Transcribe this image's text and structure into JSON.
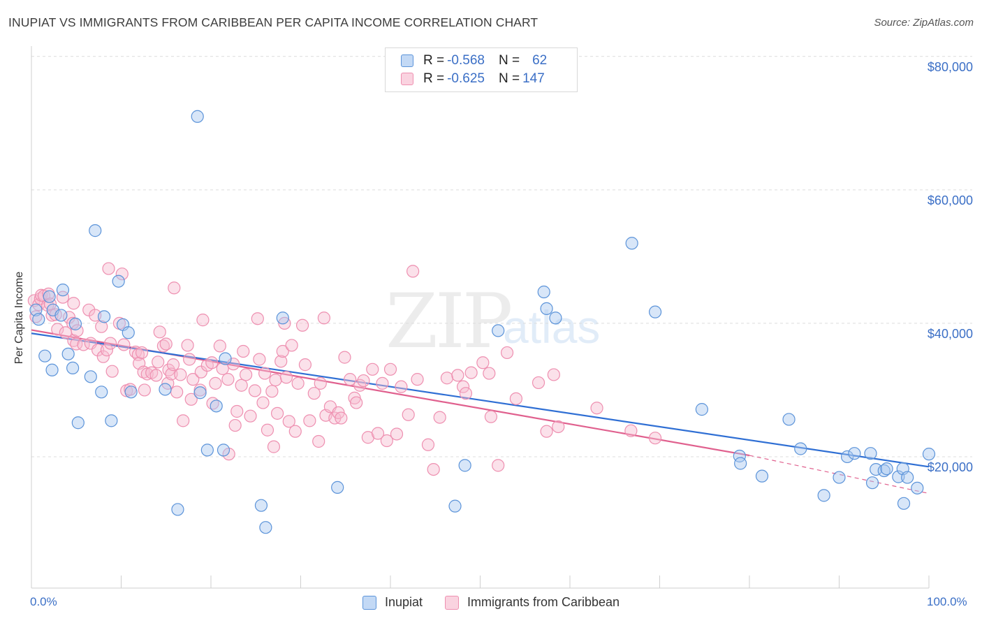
{
  "title": "INUPIAT VS IMMIGRANTS FROM CARIBBEAN PER CAPITA INCOME CORRELATION CHART",
  "source": "Source: ZipAtlas.com",
  "watermark": {
    "zip": "ZIP",
    "atlas": "atlas"
  },
  "stats": [
    {
      "r_label": "R = ",
      "r_value": "-0.568",
      "n_label": "N = ",
      "n_value": "62",
      "color": "#a9c8f0"
    },
    {
      "r_label": "R = ",
      "r_value": "-0.625",
      "n_label": "N = ",
      "n_value": "147",
      "color": "#f6bcd0"
    }
  ],
  "legend": [
    {
      "label": "Inupiat",
      "color": "#a9c8f0"
    },
    {
      "label": "Immigrants from Caribbean",
      "color": "#f6bcd0"
    }
  ],
  "chart_data": {
    "type": "scatter",
    "title": "INUPIAT VS IMMIGRANTS FROM CARIBBEAN PER CAPITA INCOME CORRELATION CHART",
    "xlabel": "",
    "ylabel": "Per Capita Income",
    "xlim": [
      0,
      100
    ],
    "ylim": [
      0,
      80000
    ],
    "x_tick_labels": [
      "0.0%",
      "100.0%"
    ],
    "y_ticks": [
      20000,
      40000,
      60000,
      80000
    ],
    "y_tick_labels": [
      "$20,000",
      "$40,000",
      "$60,000",
      "$80,000"
    ],
    "grid": "horizontal dashed",
    "colors": {
      "inupiat": "#5b93d9",
      "caribbean": "#ee8fb0",
      "inupiat_line": "#2f6fd4",
      "caribbean_line": "#e0608e"
    },
    "series": [
      {
        "name": "Inupiat",
        "trend": {
          "x": [
            0,
            100
          ],
          "y": [
            38500,
            18500
          ]
        },
        "points": [
          [
            0.5,
            42000
          ],
          [
            0.8,
            40600
          ],
          [
            1.5,
            35100
          ],
          [
            2.0,
            44000
          ],
          [
            2.3,
            33000
          ],
          [
            2.4,
            42000
          ],
          [
            3.3,
            41200
          ],
          [
            3.5,
            45000
          ],
          [
            4.1,
            35400
          ],
          [
            4.6,
            33300
          ],
          [
            4.9,
            39900
          ],
          [
            5.2,
            25100
          ],
          [
            6.6,
            32000
          ],
          [
            7.1,
            53900
          ],
          [
            7.8,
            29700
          ],
          [
            8.1,
            41000
          ],
          [
            8.9,
            25400
          ],
          [
            9.7,
            46300
          ],
          [
            10.2,
            39800
          ],
          [
            10.8,
            38600
          ],
          [
            11.1,
            29700
          ],
          [
            14.9,
            30100
          ],
          [
            16.3,
            12100
          ],
          [
            18.5,
            71000
          ],
          [
            18.8,
            29600
          ],
          [
            19.6,
            21000
          ],
          [
            20.6,
            27600
          ],
          [
            21.4,
            21000
          ],
          [
            21.6,
            34700
          ],
          [
            25.6,
            12700
          ],
          [
            26.1,
            9400
          ],
          [
            28.0,
            40800
          ],
          [
            34.1,
            15400
          ],
          [
            47.2,
            12600
          ],
          [
            48.3,
            18700
          ],
          [
            52.0,
            38900
          ],
          [
            57.1,
            44700
          ],
          [
            57.4,
            42200
          ],
          [
            58.4,
            40800
          ],
          [
            66.9,
            52000
          ],
          [
            69.5,
            41700
          ],
          [
            74.7,
            27100
          ],
          [
            78.9,
            20100
          ],
          [
            79.0,
            19000
          ],
          [
            81.4,
            17100
          ],
          [
            84.4,
            25600
          ],
          [
            85.7,
            21200
          ],
          [
            88.3,
            14200
          ],
          [
            90.0,
            16900
          ],
          [
            90.9,
            20000
          ],
          [
            91.7,
            20500
          ],
          [
            93.5,
            20500
          ],
          [
            93.7,
            16100
          ],
          [
            94.1,
            18100
          ],
          [
            95.0,
            17900
          ],
          [
            95.3,
            18200
          ],
          [
            96.6,
            17000
          ],
          [
            97.1,
            18200
          ],
          [
            97.2,
            13000
          ],
          [
            97.6,
            16900
          ],
          [
            98.7,
            15300
          ],
          [
            100.0,
            20400
          ]
        ]
      },
      {
        "name": "Immigrants from Caribbean",
        "trend": {
          "x": [
            0,
            80
          ],
          "y": [
            39000,
            20200
          ]
        },
        "trend_extension": {
          "x": [
            80,
            100
          ],
          "y": [
            20200,
            14500
          ]
        },
        "points": [
          [
            0.3,
            43400
          ],
          [
            0.5,
            41000
          ],
          [
            0.8,
            42800
          ],
          [
            1.0,
            43700
          ],
          [
            1.1,
            44200
          ],
          [
            1.4,
            44100
          ],
          [
            1.8,
            42700
          ],
          [
            1.9,
            44400
          ],
          [
            2.1,
            42900
          ],
          [
            2.3,
            41200
          ],
          [
            2.7,
            41300
          ],
          [
            2.9,
            39100
          ],
          [
            3.5,
            43900
          ],
          [
            3.8,
            38600
          ],
          [
            4.2,
            40900
          ],
          [
            4.6,
            40000
          ],
          [
            4.7,
            43000
          ],
          [
            4.7,
            37400
          ],
          [
            5.0,
            36900
          ],
          [
            5.1,
            38900
          ],
          [
            5.8,
            36800
          ],
          [
            6.4,
            42000
          ],
          [
            6.6,
            37000
          ],
          [
            7.1,
            41200
          ],
          [
            7.4,
            36000
          ],
          [
            7.8,
            39500
          ],
          [
            8.0,
            35000
          ],
          [
            8.4,
            36000
          ],
          [
            8.6,
            48200
          ],
          [
            8.8,
            37000
          ],
          [
            9.0,
            32800
          ],
          [
            9.8,
            40000
          ],
          [
            10.1,
            47400
          ],
          [
            10.3,
            36800
          ],
          [
            10.6,
            29900
          ],
          [
            11.0,
            30100
          ],
          [
            11.6,
            35700
          ],
          [
            11.9,
            35300
          ],
          [
            12.0,
            34000
          ],
          [
            12.3,
            35600
          ],
          [
            12.5,
            32700
          ],
          [
            12.6,
            30000
          ],
          [
            12.9,
            32400
          ],
          [
            13.4,
            32600
          ],
          [
            13.9,
            32200
          ],
          [
            14.1,
            34200
          ],
          [
            14.3,
            38700
          ],
          [
            14.7,
            36600
          ],
          [
            15.0,
            36900
          ],
          [
            15.2,
            31000
          ],
          [
            15.3,
            33000
          ],
          [
            15.6,
            32400
          ],
          [
            15.8,
            33800
          ],
          [
            15.9,
            45300
          ],
          [
            16.2,
            29700
          ],
          [
            16.6,
            32300
          ],
          [
            16.9,
            25400
          ],
          [
            17.4,
            36700
          ],
          [
            17.6,
            34600
          ],
          [
            17.8,
            28600
          ],
          [
            18.0,
            31600
          ],
          [
            18.8,
            30000
          ],
          [
            18.9,
            32700
          ],
          [
            19.1,
            40500
          ],
          [
            19.6,
            33700
          ],
          [
            20.1,
            34100
          ],
          [
            20.2,
            28000
          ],
          [
            20.5,
            31000
          ],
          [
            21.0,
            36600
          ],
          [
            21.3,
            33200
          ],
          [
            21.9,
            31600
          ],
          [
            22.0,
            20400
          ],
          [
            22.5,
            33900
          ],
          [
            22.7,
            24700
          ],
          [
            22.9,
            26800
          ],
          [
            23.4,
            30700
          ],
          [
            23.6,
            35800
          ],
          [
            23.9,
            32300
          ],
          [
            24.4,
            26100
          ],
          [
            24.9,
            29900
          ],
          [
            25.2,
            40700
          ],
          [
            25.4,
            34600
          ],
          [
            25.8,
            28100
          ],
          [
            26.0,
            32500
          ],
          [
            26.3,
            24000
          ],
          [
            26.8,
            29800
          ],
          [
            27.0,
            21500
          ],
          [
            27.2,
            31500
          ],
          [
            27.4,
            26500
          ],
          [
            27.8,
            34300
          ],
          [
            28.0,
            35800
          ],
          [
            28.2,
            40000
          ],
          [
            28.4,
            31900
          ],
          [
            28.7,
            25300
          ],
          [
            29.0,
            36700
          ],
          [
            29.4,
            23800
          ],
          [
            29.7,
            31000
          ],
          [
            30.2,
            39700
          ],
          [
            30.5,
            33800
          ],
          [
            31.0,
            25400
          ],
          [
            31.5,
            29500
          ],
          [
            32.0,
            22300
          ],
          [
            32.2,
            31000
          ],
          [
            32.6,
            40800
          ],
          [
            32.8,
            26200
          ],
          [
            33.3,
            27500
          ],
          [
            33.8,
            25800
          ],
          [
            34.2,
            26600
          ],
          [
            34.5,
            25800
          ],
          [
            34.9,
            34900
          ],
          [
            35.5,
            31600
          ],
          [
            36.0,
            28800
          ],
          [
            36.2,
            28100
          ],
          [
            36.6,
            30700
          ],
          [
            37.0,
            31400
          ],
          [
            37.5,
            22900
          ],
          [
            38.0,
            33100
          ],
          [
            38.6,
            23500
          ],
          [
            39.1,
            31000
          ],
          [
            39.6,
            22400
          ],
          [
            40.0,
            33100
          ],
          [
            40.7,
            23400
          ],
          [
            41.2,
            30500
          ],
          [
            42.0,
            26300
          ],
          [
            42.5,
            47800
          ],
          [
            43.0,
            31600
          ],
          [
            44.2,
            21800
          ],
          [
            44.8,
            18100
          ],
          [
            45.5,
            25900
          ],
          [
            46.3,
            31800
          ],
          [
            47.5,
            32200
          ],
          [
            48.1,
            30500
          ],
          [
            48.4,
            29500
          ],
          [
            49.0,
            32600
          ],
          [
            50.3,
            34100
          ],
          [
            51.0,
            32500
          ],
          [
            51.2,
            26000
          ],
          [
            52.0,
            18700
          ],
          [
            53.0,
            35600
          ],
          [
            54.0,
            28700
          ],
          [
            56.5,
            31100
          ],
          [
            57.4,
            23800
          ],
          [
            58.2,
            32300
          ],
          [
            58.7,
            24500
          ],
          [
            63.0,
            27300
          ],
          [
            66.8,
            23900
          ],
          [
            69.5,
            22800
          ]
        ]
      }
    ]
  }
}
